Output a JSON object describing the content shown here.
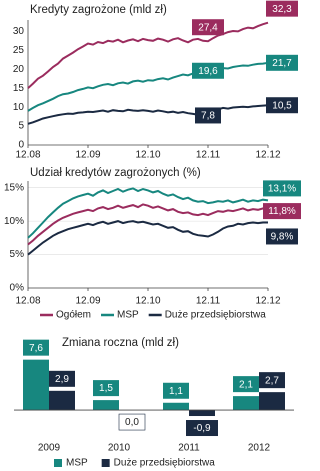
{
  "chart_data": [
    {
      "type": "line",
      "title": "Kredyty zagrożone (mld zł)",
      "categories": [
        "12.08",
        null,
        null,
        null,
        null,
        null,
        null,
        null,
        null,
        null,
        null,
        null,
        "12.09",
        null,
        null,
        null,
        null,
        null,
        null,
        null,
        null,
        null,
        null,
        null,
        "12.10",
        null,
        null,
        null,
        null,
        null,
        null,
        null,
        null,
        null,
        null,
        null,
        "12.11",
        null,
        null,
        null,
        null,
        null,
        null,
        null,
        null,
        null,
        null,
        null,
        "12.12"
      ],
      "ylim": [
        0,
        33
      ],
      "yticks": [
        0,
        5,
        10,
        15,
        20,
        25,
        30
      ],
      "grid": false,
      "series": [
        {
          "color": "#9b2c5e",
          "values": [
            15.0,
            16.2,
            17.5,
            18.3,
            19.4,
            20.6,
            21.5,
            22.8,
            23.6,
            24.4,
            25.3,
            26.0,
            26.8,
            26.5,
            27.2,
            26.9,
            27.5,
            27.3,
            27.8,
            27.1,
            27.6,
            27.9,
            27.4,
            28.0,
            27.7,
            27.5,
            28.1,
            27.8,
            27.3,
            27.9,
            28.2,
            27.6,
            27.1,
            27.8,
            28.0,
            27.5,
            27.4,
            28.2,
            28.9,
            29.3,
            29.8,
            30.1,
            30.0,
            30.6,
            31.0,
            30.8,
            31.4,
            31.9,
            32.3
          ],
          "value_labels": [
            null,
            null,
            null,
            null,
            null,
            null,
            null,
            null,
            null,
            null,
            null,
            null,
            null,
            null,
            null,
            null,
            null,
            null,
            null,
            null,
            null,
            null,
            null,
            null,
            null,
            null,
            null,
            null,
            null,
            null,
            null,
            null,
            null,
            null,
            null,
            null,
            "27,4",
            null,
            null,
            null,
            null,
            null,
            null,
            null,
            null,
            null,
            null,
            null,
            "32,3"
          ]
        },
        {
          "color": "#17877f",
          "values": [
            9.0,
            9.8,
            10.5,
            11.0,
            11.6,
            12.2,
            12.9,
            13.4,
            13.6,
            14.0,
            14.5,
            14.8,
            15.2,
            15.0,
            15.5,
            15.9,
            16.1,
            15.8,
            16.3,
            16.5,
            16.2,
            16.8,
            17.0,
            16.7,
            17.1,
            17.0,
            17.4,
            17.6,
            17.3,
            17.8,
            18.2,
            18.6,
            18.4,
            18.9,
            19.2,
            19.4,
            19.6,
            19.8,
            20.1,
            20.3,
            20.2,
            20.6,
            20.8,
            21.0,
            20.9,
            21.2,
            21.4,
            21.5,
            21.7
          ],
          "value_labels": [
            null,
            null,
            null,
            null,
            null,
            null,
            null,
            null,
            null,
            null,
            null,
            null,
            null,
            null,
            null,
            null,
            null,
            null,
            null,
            null,
            null,
            null,
            null,
            null,
            null,
            null,
            null,
            null,
            null,
            null,
            null,
            null,
            null,
            null,
            null,
            null,
            "19,6",
            null,
            null,
            null,
            null,
            null,
            null,
            null,
            null,
            null,
            null,
            null,
            "21,7"
          ]
        },
        {
          "color": "#1b2a42",
          "values": [
            5.6,
            6.0,
            6.5,
            7.0,
            7.3,
            7.6,
            7.9,
            8.1,
            8.3,
            8.2,
            8.5,
            8.6,
            8.8,
            8.7,
            8.9,
            9.1,
            8.8,
            9.2,
            9.0,
            8.9,
            9.3,
            9.1,
            9.0,
            9.2,
            9.0,
            8.8,
            9.1,
            8.9,
            8.6,
            8.8,
            8.5,
            8.7,
            8.4,
            8.2,
            8.0,
            7.9,
            7.8,
            8.6,
            9.4,
            9.8,
            9.6,
            9.9,
            10.0,
            10.1,
            10.0,
            10.2,
            10.3,
            10.4,
            10.5
          ],
          "value_labels": [
            null,
            null,
            null,
            null,
            null,
            null,
            null,
            null,
            null,
            null,
            null,
            null,
            null,
            null,
            null,
            null,
            null,
            null,
            null,
            null,
            null,
            null,
            null,
            null,
            null,
            null,
            null,
            null,
            null,
            null,
            null,
            null,
            null,
            null,
            null,
            null,
            "7,8",
            null,
            null,
            null,
            null,
            null,
            null,
            null,
            null,
            null,
            null,
            null,
            "10,5"
          ]
        }
      ]
    },
    {
      "type": "line",
      "title": "Udział kredytów zagrożonych (%)",
      "categories": [
        "12.08",
        null,
        null,
        null,
        null,
        null,
        null,
        null,
        null,
        null,
        null,
        null,
        "12.09",
        null,
        null,
        null,
        null,
        null,
        null,
        null,
        null,
        null,
        null,
        null,
        "12.10",
        null,
        null,
        null,
        null,
        null,
        null,
        null,
        null,
        null,
        null,
        null,
        "12.11",
        null,
        null,
        null,
        null,
        null,
        null,
        null,
        null,
        null,
        null,
        null,
        "12.12"
      ],
      "ylim": [
        0,
        16
      ],
      "yticks": [
        {
          "value": 0,
          "label": "0%"
        },
        {
          "value": 5,
          "label": "5%"
        },
        {
          "value": 10,
          "label": "10%"
        },
        {
          "value": 15,
          "label": "15%"
        }
      ],
      "grid": true,
      "legend": "bottom",
      "series": [
        {
          "name": "Ogółem",
          "color": "#9b2c5e",
          "values": [
            6.5,
            7.1,
            7.8,
            8.4,
            9.0,
            9.6,
            10.1,
            10.5,
            10.8,
            11.1,
            11.3,
            11.5,
            11.7,
            11.5,
            11.9,
            12.1,
            11.8,
            12.0,
            12.3,
            12.0,
            12.2,
            12.4,
            12.1,
            12.5,
            12.3,
            12.0,
            12.2,
            11.9,
            11.6,
            11.8,
            11.4,
            11.2,
            11.3,
            11.0,
            10.9,
            11.1,
            10.9,
            11.2,
            11.5,
            11.4,
            11.6,
            11.5,
            11.7,
            11.9,
            11.6,
            11.8,
            11.7,
            11.9,
            11.8
          ],
          "value_labels": [
            null,
            null,
            null,
            null,
            null,
            null,
            null,
            null,
            null,
            null,
            null,
            null,
            null,
            null,
            null,
            null,
            null,
            null,
            null,
            null,
            null,
            null,
            null,
            null,
            null,
            null,
            null,
            null,
            null,
            null,
            null,
            null,
            null,
            null,
            null,
            null,
            null,
            null,
            null,
            null,
            null,
            null,
            null,
            null,
            null,
            null,
            null,
            null,
            "11,8%"
          ]
        },
        {
          "name": "MSP",
          "color": "#17877f",
          "values": [
            7.5,
            8.2,
            9.0,
            9.8,
            10.6,
            11.3,
            12.0,
            12.6,
            13.0,
            13.4,
            13.7,
            13.9,
            14.1,
            13.8,
            14.3,
            14.6,
            14.2,
            14.5,
            14.8,
            14.4,
            14.7,
            14.9,
            14.5,
            14.8,
            14.6,
            14.3,
            14.5,
            14.1,
            13.8,
            14.0,
            13.6,
            13.3,
            13.5,
            13.1,
            12.9,
            13.0,
            12.7,
            12.8,
            13.0,
            12.9,
            13.1,
            12.8,
            13.0,
            13.2,
            12.9,
            13.1,
            13.0,
            13.2,
            13.1
          ],
          "value_labels": [
            null,
            null,
            null,
            null,
            null,
            null,
            null,
            null,
            null,
            null,
            null,
            null,
            null,
            null,
            null,
            null,
            null,
            null,
            null,
            null,
            null,
            null,
            null,
            null,
            null,
            null,
            null,
            null,
            null,
            null,
            null,
            null,
            null,
            null,
            null,
            null,
            null,
            null,
            null,
            null,
            null,
            null,
            null,
            null,
            null,
            null,
            null,
            null,
            "13,1%"
          ]
        },
        {
          "name": "Duże przedsiębiorstwa",
          "color": "#1b2a42",
          "values": [
            5.0,
            5.6,
            6.2,
            6.8,
            7.3,
            7.8,
            8.2,
            8.5,
            8.8,
            9.0,
            9.2,
            9.4,
            9.6,
            9.4,
            9.7,
            9.9,
            9.6,
            9.8,
            10.0,
            9.7,
            9.9,
            10.0,
            9.8,
            9.9,
            9.7,
            9.5,
            9.6,
            9.3,
            9.0,
            9.1,
            8.7,
            8.4,
            8.5,
            8.1,
            7.9,
            7.8,
            7.7,
            8.0,
            8.4,
            8.9,
            9.2,
            9.3,
            9.6,
            9.5,
            9.7,
            9.8,
            9.7,
            9.8,
            9.8
          ],
          "value_labels": [
            null,
            null,
            null,
            null,
            null,
            null,
            null,
            null,
            null,
            null,
            null,
            null,
            null,
            null,
            null,
            null,
            null,
            null,
            null,
            null,
            null,
            null,
            null,
            null,
            null,
            null,
            null,
            null,
            null,
            null,
            null,
            null,
            null,
            null,
            null,
            null,
            null,
            null,
            null,
            null,
            null,
            null,
            null,
            null,
            null,
            null,
            null,
            null,
            "9,8%"
          ]
        }
      ]
    },
    {
      "type": "bar",
      "title": "Zmiana roczna (mld zł)",
      "categories": [
        "2009",
        "2010",
        "2011",
        "2012"
      ],
      "ylim": [
        -1.5,
        8
      ],
      "legend": "bottom",
      "series": [
        {
          "name": "MSP",
          "color": "#17877f",
          "values": [
            7.6,
            1.5,
            1.1,
            2.1
          ],
          "value_labels": [
            "7,6",
            "1,5",
            "1,1",
            "2,1"
          ]
        },
        {
          "name": "Duże przedsiębiorstwa",
          "color": "#1b2a42",
          "values": [
            2.9,
            0.0,
            -0.9,
            2.7
          ],
          "value_labels": [
            "2,9",
            "0,0",
            "-0,9",
            "2,7"
          ]
        }
      ]
    }
  ]
}
